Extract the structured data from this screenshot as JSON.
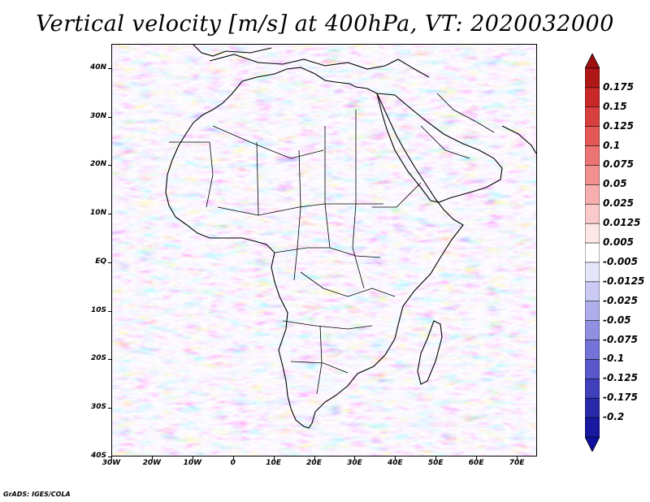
{
  "title": "Vertical velocity [m/s] at 400hPa, VT: 2020032000",
  "credit": "GrADS: IGES/COLA",
  "map": {
    "projection": "lat-lon",
    "lon_range": [
      -30,
      75
    ],
    "lat_range": [
      -40,
      45
    ],
    "lat_ticks": [
      {
        "value": 40,
        "label": "40N"
      },
      {
        "value": 30,
        "label": "30N"
      },
      {
        "value": 20,
        "label": "20N"
      },
      {
        "value": 10,
        "label": "10N"
      },
      {
        "value": 0,
        "label": "EQ"
      },
      {
        "value": -10,
        "label": "10S"
      },
      {
        "value": -20,
        "label": "20S"
      },
      {
        "value": -30,
        "label": "30S"
      },
      {
        "value": -40,
        "label": "40S"
      }
    ],
    "lon_ticks": [
      {
        "value": -30,
        "label": "30W"
      },
      {
        "value": -20,
        "label": "20W"
      },
      {
        "value": -10,
        "label": "10W"
      },
      {
        "value": 0,
        "label": "0"
      },
      {
        "value": 10,
        "label": "10E"
      },
      {
        "value": 20,
        "label": "20E"
      },
      {
        "value": 30,
        "label": "30E"
      },
      {
        "value": 40,
        "label": "40E"
      },
      {
        "value": 50,
        "label": "50E"
      },
      {
        "value": 60,
        "label": "60E"
      },
      {
        "value": 70,
        "label": "70E"
      }
    ]
  },
  "colorbar": {
    "levels": [
      "0.175",
      "0.15",
      "0.125",
      "0.1",
      "0.075",
      "0.05",
      "0.025",
      "0.0125",
      "0.005",
      "-0.005",
      "-0.0125",
      "-0.025",
      "-0.05",
      "-0.075",
      "-0.1",
      "-0.125",
      "-0.175",
      "-0.2"
    ],
    "colors": [
      "#b01818",
      "#c82828",
      "#d84040",
      "#e45858",
      "#ec7474",
      "#f29090",
      "#f6aeae",
      "#facaca",
      "#fde6e6",
      "#ffffff",
      "#e6e6fb",
      "#cacaf4",
      "#aeaeec",
      "#9090e2",
      "#7474d8",
      "#5858cc",
      "#4040bc",
      "#2828a8",
      "#1818a0"
    ],
    "top_arrow_color": "#a01010",
    "bottom_arrow_color": "#1010a0"
  }
}
